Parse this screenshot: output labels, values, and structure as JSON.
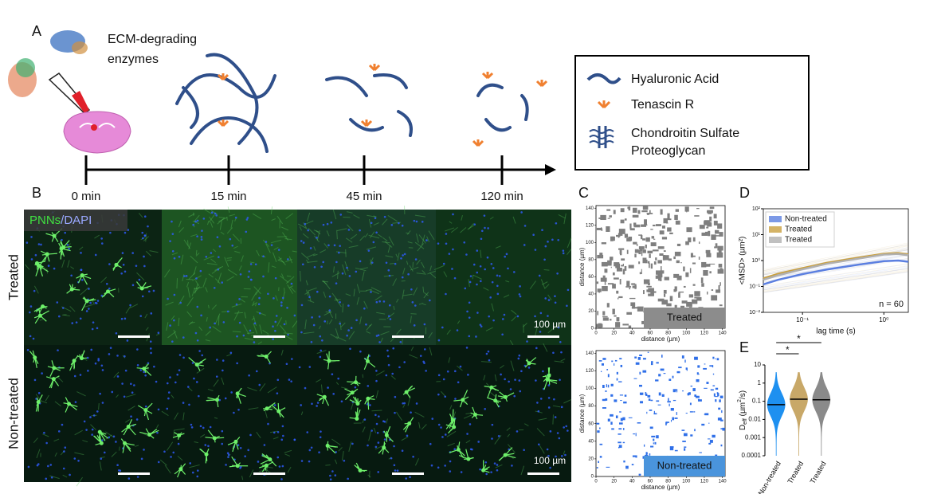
{
  "panel_a": {
    "label": "A",
    "enzymes": [
      "ECM-degrading",
      "enzymes"
    ],
    "timepoints": [
      "0 min",
      "15 min",
      "45 min",
      "120 min"
    ],
    "legend": {
      "hyaluronic_acid": "Hyaluronic Acid",
      "tenascin_r": "Tenascin R",
      "cspg": [
        "Chondroitin Sulfate",
        "Proteoglycan"
      ]
    }
  },
  "panel_b": {
    "label": "B",
    "stain": {
      "pnns": "PNNs",
      "dapi": "/DAPI"
    },
    "rows": [
      "Treated",
      "Non-treated"
    ],
    "scale_bar": "100 µm"
  },
  "panel_c": {
    "label": "C",
    "xlabel": "distance (µm)",
    "ylabel": "distance (µm)",
    "xlim": [
      0,
      143
    ],
    "ylim": [
      0,
      143
    ],
    "xticks": [
      0,
      20,
      40,
      60,
      80,
      100,
      120,
      140
    ],
    "yticks": [
      0,
      20,
      40,
      60,
      80,
      100,
      120,
      140
    ],
    "maps": [
      {
        "name": "Treated",
        "color": "#7f7f7f"
      },
      {
        "name": "Non-treated",
        "color": "#2f6fe8"
      }
    ]
  },
  "panel_d": {
    "label": "D",
    "type": "line",
    "xlabel": "lag time (s)",
    "ylabel": "<MSD> (µm²)",
    "xscale": "log",
    "yscale": "log",
    "xlim": [
      0.033,
      2
    ],
    "ylim": [
      0.01,
      100
    ],
    "xticks": [
      {
        "value": 0.1,
        "label": "10⁻¹"
      },
      {
        "value": 1,
        "label": "10⁰"
      }
    ],
    "yticks": [
      {
        "value": 0.01,
        "label": "10⁻²"
      },
      {
        "value": 0.1,
        "label": "10⁻¹"
      },
      {
        "value": 1,
        "label": "10⁰"
      },
      {
        "value": 10,
        "label": "10¹"
      },
      {
        "value": 100,
        "label": "10²"
      }
    ],
    "x": [
      0.033,
      0.05,
      0.1,
      0.2,
      0.5,
      1,
      1.5,
      2
    ],
    "series": [
      {
        "name": "Non-treated",
        "color": "#5b7fe0",
        "values": [
          0.12,
          0.18,
          0.3,
          0.45,
          0.7,
          0.95,
          1.0,
          0.9
        ]
      },
      {
        "name": "Treated",
        "color": "#c9a040",
        "values": [
          0.2,
          0.3,
          0.5,
          0.8,
          1.3,
          1.8,
          1.9,
          1.7
        ]
      },
      {
        "name": "Treated",
        "color": "#b0b0b0",
        "values": [
          0.18,
          0.27,
          0.46,
          0.75,
          1.2,
          1.7,
          1.8,
          1.6
        ]
      }
    ],
    "legend": "upper left",
    "annotation": "n = 60"
  },
  "panel_e": {
    "label": "E",
    "type": "violin",
    "ylabel": [
      "D",
      "eff",
      " (µm",
      "2",
      "/s)"
    ],
    "yscale": "log",
    "categories": [
      "Non-treated",
      "Treated",
      "Treated"
    ],
    "colors": [
      "#1e90f0",
      "#c8a868",
      "#8a8a8a"
    ],
    "medians": [
      0.065,
      0.13,
      0.12
    ],
    "ylim": [
      0.0001,
      10
    ],
    "yticks": [
      0.0001,
      0.001,
      0.01,
      0.1,
      1,
      10
    ],
    "significance": [
      "*",
      "*"
    ]
  }
}
